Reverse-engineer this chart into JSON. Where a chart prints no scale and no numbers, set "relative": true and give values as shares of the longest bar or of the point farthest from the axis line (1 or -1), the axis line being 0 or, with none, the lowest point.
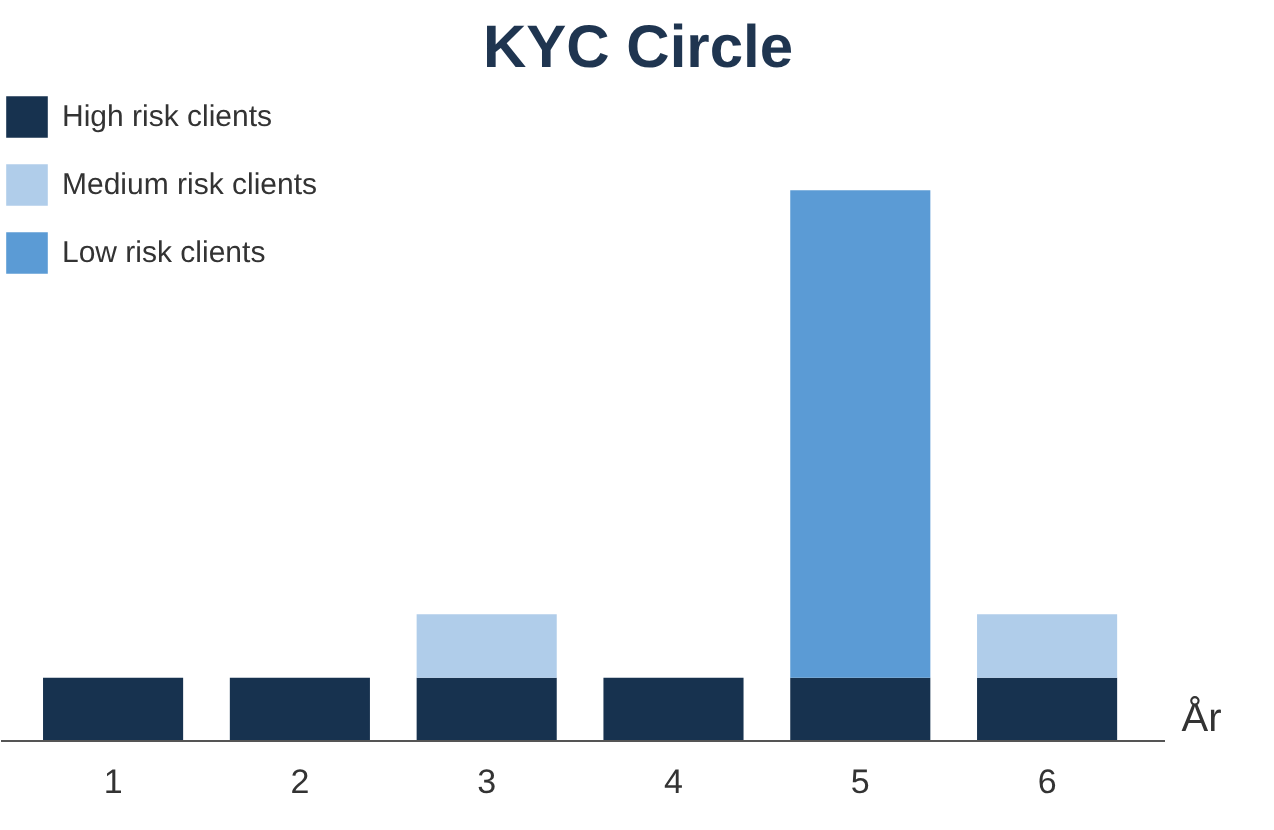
{
  "chart_data": {
    "type": "bar",
    "title": "KYC Circle",
    "xlabel": "År",
    "categories": [
      "1",
      "2",
      "3",
      "4",
      "5",
      "6"
    ],
    "stacked": true,
    "relative": true,
    "legend": "top left",
    "grid": false,
    "series": [
      {
        "name": "High risk clients",
        "color": "#17324f",
        "values": [
          0.115,
          0.115,
          0.115,
          0.115,
          0.115,
          0.115
        ]
      },
      {
        "name": "Medium risk clients",
        "color": "#b0cdea",
        "values": [
          null,
          null,
          0.115,
          null,
          null,
          0.115
        ]
      },
      {
        "name": "Low risk clients",
        "color": "#5b9bd5",
        "values": [
          null,
          null,
          null,
          null,
          0.885,
          null
        ]
      }
    ]
  }
}
